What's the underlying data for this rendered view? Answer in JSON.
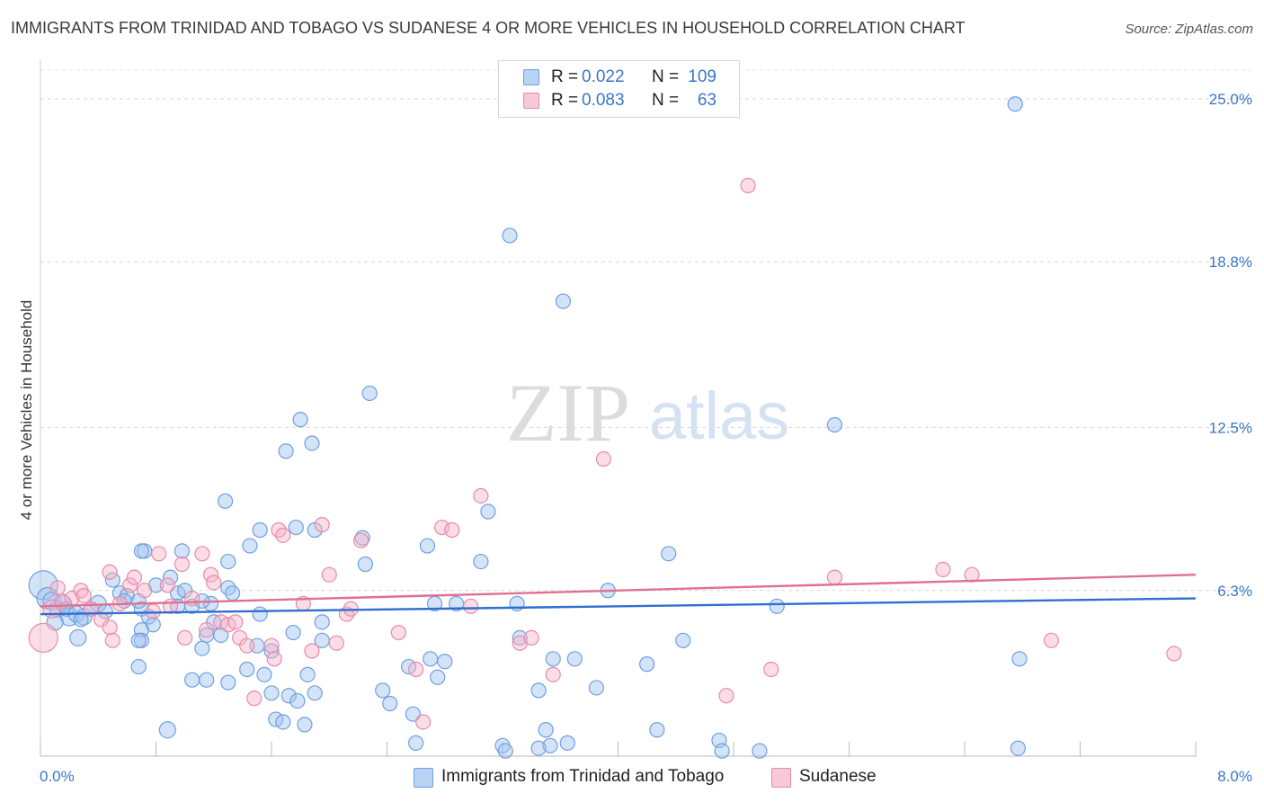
{
  "title": "IMMIGRANTS FROM TRINIDAD AND TOBAGO VS SUDANESE 4 OR MORE VEHICLES IN HOUSEHOLD CORRELATION CHART",
  "source": "Source: ZipAtlas.com",
  "watermark": {
    "zip": "ZIP",
    "atlas": "atlas"
  },
  "stats": [
    {
      "r_label": "R =",
      "r_value": "0.022",
      "n_label": "N =",
      "n_value": "109",
      "color": "#6f9fdf"
    },
    {
      "r_label": "R =",
      "r_value": "0.083",
      "n_label": "N =",
      "n_value": "63",
      "color": "#ea8aaa"
    }
  ],
  "legend": [
    {
      "label": "Immigrants from Trinidad and Tobago",
      "color": "#b9d3f5"
    },
    {
      "label": "Sudanese",
      "color": "#f8c8d8"
    }
  ],
  "chart_data": {
    "type": "scatter",
    "title": "IMMIGRANTS FROM TRINIDAD AND TOBAGO VS SUDANESE 4 OR MORE VEHICLES IN HOUSEHOLD CORRELATION CHART",
    "xlabel": "",
    "ylabel": "4 or more Vehicles in Household",
    "xlim": [
      0,
      8
    ],
    "ylim": [
      0,
      26.5
    ],
    "x_tick_labels": [
      "0.0%",
      "8.0%"
    ],
    "y_ticks": [
      {
        "value": 6.3,
        "label": "6.3%"
      },
      {
        "value": 12.5,
        "label": "12.5%"
      },
      {
        "value": 18.8,
        "label": "18.8%"
      },
      {
        "value": 25.0,
        "label": "25.0%"
      }
    ],
    "grid": true,
    "series": [
      {
        "name": "Immigrants from Trinidad and Tobago",
        "color": "#6f9fdf",
        "fill": "rgba(160,195,240,0.45)",
        "trend": {
          "x": [
            0,
            8
          ],
          "y": [
            5.4,
            6.0
          ],
          "color": "#2f6fd0"
        },
        "points": [
          [
            0.02,
            6.5,
            16
          ],
          [
            0.05,
            6.0,
            12
          ],
          [
            0.08,
            5.9,
            10
          ],
          [
            0.12,
            5.6,
            9
          ],
          [
            0.16,
            5.8,
            9
          ],
          [
            0.2,
            5.3,
            10
          ],
          [
            0.1,
            5.1,
            9
          ],
          [
            0.18,
            5.6,
            8
          ],
          [
            0.25,
            5.4,
            9
          ],
          [
            0.3,
            5.3,
            9
          ],
          [
            0.35,
            5.6,
            8
          ],
          [
            0.28,
            5.2,
            8
          ],
          [
            0.4,
            5.8,
            9
          ],
          [
            0.45,
            5.5,
            8
          ],
          [
            0.55,
            6.2,
            8
          ],
          [
            0.6,
            6.1,
            8
          ],
          [
            0.58,
            5.9,
            8
          ],
          [
            0.7,
            5.6,
            8
          ],
          [
            0.75,
            5.3,
            8
          ],
          [
            0.8,
            6.5,
            8
          ],
          [
            0.9,
            6.8,
            8
          ],
          [
            0.95,
            6.2,
            8
          ],
          [
            1.0,
            6.3,
            8
          ],
          [
            1.05,
            5.7,
            8
          ],
          [
            0.72,
            7.8,
            8
          ],
          [
            0.7,
            7.8,
            8
          ],
          [
            0.98,
            7.8,
            8
          ],
          [
            1.3,
            7.4,
            8
          ],
          [
            1.3,
            6.4,
            8
          ],
          [
            1.33,
            6.2,
            8
          ],
          [
            0.78,
            5.0,
            8
          ],
          [
            0.68,
            5.9,
            8
          ],
          [
            0.5,
            6.7,
            8
          ],
          [
            0.7,
            4.8,
            8
          ],
          [
            0.7,
            4.4,
            8
          ],
          [
            0.95,
            5.7,
            8
          ],
          [
            1.18,
            5.8,
            8
          ],
          [
            1.2,
            5.1,
            8
          ],
          [
            1.15,
            4.6,
            8
          ],
          [
            1.12,
            4.1,
            8
          ],
          [
            1.25,
            4.6,
            8
          ],
          [
            1.12,
            5.9,
            8
          ],
          [
            0.68,
            4.4,
            8
          ],
          [
            0.26,
            4.5,
            9
          ],
          [
            0.68,
            3.4,
            8
          ],
          [
            1.05,
            2.9,
            8
          ],
          [
            1.15,
            2.9,
            8
          ],
          [
            1.3,
            2.8,
            8
          ],
          [
            1.43,
            3.3,
            8
          ],
          [
            1.55,
            3.1,
            8
          ],
          [
            1.6,
            2.4,
            8
          ],
          [
            1.63,
            1.4,
            8
          ],
          [
            1.68,
            1.3,
            8
          ],
          [
            1.72,
            2.3,
            8
          ],
          [
            1.78,
            2.1,
            8
          ],
          [
            1.83,
            1.2,
            8
          ],
          [
            1.85,
            3.1,
            8
          ],
          [
            1.9,
            2.4,
            8
          ],
          [
            1.95,
            4.4,
            8
          ],
          [
            1.6,
            4.0,
            8
          ],
          [
            1.5,
            4.2,
            8
          ],
          [
            1.52,
            5.4,
            8
          ],
          [
            1.75,
            4.7,
            8
          ],
          [
            1.95,
            5.1,
            8
          ],
          [
            0.88,
            1.0,
            9
          ],
          [
            1.28,
            9.7,
            8
          ],
          [
            1.45,
            8.0,
            8
          ],
          [
            1.52,
            8.6,
            8
          ],
          [
            1.77,
            8.7,
            8
          ],
          [
            1.9,
            8.6,
            8
          ],
          [
            1.8,
            12.8,
            8
          ],
          [
            1.7,
            11.6,
            8
          ],
          [
            1.88,
            11.9,
            8
          ],
          [
            2.28,
            13.8,
            8
          ],
          [
            2.23,
            8.3,
            8
          ],
          [
            2.25,
            7.3,
            8
          ],
          [
            2.37,
            2.5,
            8
          ],
          [
            2.42,
            2.0,
            8
          ],
          [
            2.55,
            3.4,
            8
          ],
          [
            2.58,
            1.6,
            8
          ],
          [
            2.6,
            0.5,
            8
          ],
          [
            2.7,
            3.7,
            8
          ],
          [
            2.73,
            5.8,
            8
          ],
          [
            2.75,
            3.0,
            8
          ],
          [
            2.8,
            3.6,
            8
          ],
          [
            2.88,
            5.8,
            8
          ],
          [
            2.68,
            8.0,
            8
          ],
          [
            3.05,
            7.4,
            8
          ],
          [
            3.2,
            0.4,
            8
          ],
          [
            3.22,
            0.2,
            8
          ],
          [
            3.1,
            9.3,
            8
          ],
          [
            3.25,
            19.8,
            8
          ],
          [
            3.3,
            5.8,
            8
          ],
          [
            3.32,
            4.5,
            8
          ],
          [
            3.45,
            2.5,
            8
          ],
          [
            3.5,
            1.0,
            8
          ],
          [
            3.53,
            0.4,
            8
          ],
          [
            3.45,
            0.3,
            8
          ],
          [
            3.55,
            3.7,
            8
          ],
          [
            3.65,
            0.5,
            8
          ],
          [
            3.7,
            3.7,
            8
          ],
          [
            3.85,
            2.6,
            8
          ],
          [
            3.62,
            17.3,
            8
          ],
          [
            3.93,
            6.3,
            8
          ],
          [
            4.2,
            3.5,
            8
          ],
          [
            4.27,
            1.0,
            8
          ],
          [
            4.35,
            7.7,
            8
          ],
          [
            4.45,
            4.4,
            8
          ],
          [
            4.7,
            0.6,
            8
          ],
          [
            4.72,
            0.2,
            8
          ],
          [
            4.98,
            0.2,
            8
          ],
          [
            5.1,
            5.7,
            8
          ],
          [
            5.5,
            12.6,
            8
          ],
          [
            6.75,
            24.8,
            8
          ],
          [
            6.78,
            3.7,
            8
          ],
          [
            6.77,
            0.3,
            8
          ]
        ]
      },
      {
        "name": "Sudanese",
        "color": "#ea8aaa",
        "fill": "rgba(245,180,200,0.45)",
        "trend": {
          "x": [
            0,
            8
          ],
          "y": [
            5.7,
            6.9
          ],
          "color": "#e0708f"
        },
        "points": [
          [
            0.02,
            4.5,
            16
          ],
          [
            0.08,
            5.6,
            10
          ],
          [
            0.12,
            6.4,
            8
          ],
          [
            0.15,
            5.9,
            8
          ],
          [
            0.22,
            6.0,
            8
          ],
          [
            0.28,
            6.3,
            8
          ],
          [
            0.3,
            6.1,
            8
          ],
          [
            0.35,
            5.6,
            8
          ],
          [
            0.42,
            5.2,
            8
          ],
          [
            0.48,
            4.9,
            8
          ],
          [
            0.5,
            4.4,
            8
          ],
          [
            0.55,
            5.8,
            8
          ],
          [
            0.62,
            6.5,
            8
          ],
          [
            0.65,
            6.8,
            8
          ],
          [
            0.72,
            6.3,
            8
          ],
          [
            0.78,
            5.5,
            8
          ],
          [
            0.82,
            7.7,
            8
          ],
          [
            0.88,
            6.5,
            8
          ],
          [
            0.9,
            5.7,
            8
          ],
          [
            0.98,
            7.3,
            8
          ],
          [
            1.0,
            4.5,
            8
          ],
          [
            1.05,
            6.0,
            8
          ],
          [
            1.12,
            7.7,
            8
          ],
          [
            1.15,
            4.8,
            8
          ],
          [
            0.48,
            7.0,
            8
          ],
          [
            1.18,
            6.9,
            8
          ],
          [
            1.2,
            6.6,
            8
          ],
          [
            1.25,
            5.1,
            8
          ],
          [
            1.3,
            5.0,
            8
          ],
          [
            1.38,
            4.5,
            8
          ],
          [
            1.35,
            5.1,
            8
          ],
          [
            1.43,
            4.2,
            8
          ],
          [
            1.48,
            2.2,
            8
          ],
          [
            1.6,
            4.2,
            8
          ],
          [
            1.62,
            3.7,
            8
          ],
          [
            1.65,
            8.6,
            8
          ],
          [
            1.68,
            8.4,
            8
          ],
          [
            1.82,
            5.8,
            8
          ],
          [
            1.88,
            4.0,
            8
          ],
          [
            1.95,
            8.8,
            8
          ],
          [
            2.0,
            6.9,
            8
          ],
          [
            2.05,
            4.3,
            8
          ],
          [
            2.12,
            5.4,
            8
          ],
          [
            2.15,
            5.6,
            8
          ],
          [
            2.22,
            8.2,
            8
          ],
          [
            2.48,
            4.7,
            8
          ],
          [
            2.6,
            3.3,
            8
          ],
          [
            2.65,
            1.3,
            8
          ],
          [
            2.78,
            8.7,
            8
          ],
          [
            2.85,
            8.6,
            8
          ],
          [
            2.98,
            5.7,
            8
          ],
          [
            3.05,
            9.9,
            8
          ],
          [
            3.32,
            4.3,
            8
          ],
          [
            3.4,
            4.5,
            8
          ],
          [
            3.55,
            3.1,
            8
          ],
          [
            3.9,
            11.3,
            8
          ],
          [
            4.75,
            2.3,
            8
          ],
          [
            4.9,
            21.7,
            8
          ],
          [
            5.06,
            3.3,
            8
          ],
          [
            5.5,
            6.8,
            8
          ],
          [
            6.25,
            7.1,
            8
          ],
          [
            6.45,
            6.9,
            8
          ],
          [
            7.0,
            4.4,
            8
          ],
          [
            7.85,
            3.9,
            8
          ]
        ]
      }
    ]
  }
}
